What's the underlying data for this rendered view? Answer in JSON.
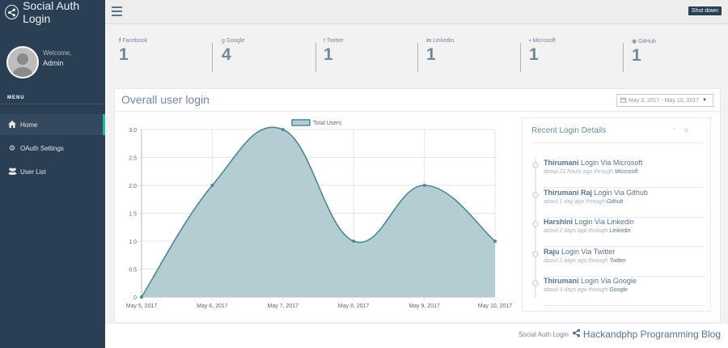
{
  "app": {
    "title": "Social Auth Login"
  },
  "profile": {
    "welcome": "Welcome,",
    "name": "Admin"
  },
  "menu": {
    "title": "MENU",
    "items": [
      {
        "label": "Home",
        "icon": "home-icon",
        "active": true
      },
      {
        "label": "OAuth Settings",
        "icon": "gear-icon",
        "active": false
      },
      {
        "label": "User List",
        "icon": "users-icon",
        "active": false
      }
    ]
  },
  "topbar": {
    "shutdown_label": "Shut down"
  },
  "stats": [
    {
      "label": "Facebook",
      "icon": "facebook-icon",
      "glyph": "f",
      "value": "1"
    },
    {
      "label": "Google",
      "icon": "google-icon",
      "glyph": "g",
      "value": "4"
    },
    {
      "label": "Twitter",
      "icon": "twitter-icon",
      "glyph": "t",
      "value": "1"
    },
    {
      "label": "Linkedin",
      "icon": "linkedin-icon",
      "glyph": "in",
      "value": "1"
    },
    {
      "label": "Microsoft",
      "icon": "windows-icon",
      "glyph": "▪",
      "value": "1"
    },
    {
      "label": "GitHub",
      "icon": "github-icon",
      "glyph": "◉",
      "value": "1"
    }
  ],
  "panel": {
    "title": "Overall user login",
    "date_range": "May 3, 2017 - May 10, 2017"
  },
  "chart_data": {
    "type": "area",
    "categories": [
      "May 5, 2017",
      "May 6, 2017",
      "May 7, 2017",
      "May 8, 2017",
      "May 9, 2017",
      "May 10, 2017"
    ],
    "series": [
      {
        "name": "Total Users",
        "values": [
          0,
          2,
          3,
          1,
          2,
          1
        ]
      }
    ],
    "yticks": [
      "0",
      "0.5",
      "1.0",
      "1.5",
      "2.0",
      "2.5",
      "3.0"
    ],
    "ylim": [
      0,
      3
    ],
    "legend": "top-center",
    "grid": true,
    "line_color": "#4d8796",
    "fill_color": "#b4cdd3"
  },
  "recent": {
    "title": "Recent Login Details",
    "items": [
      {
        "name": "Thirumani",
        "action": "Login Via Microsoft",
        "time": "about 21 hours ago through",
        "source": "Microsoft"
      },
      {
        "name": "Thirumani Raj",
        "action": "Login Via Github",
        "time": "about 1 day ago through",
        "source": "Github"
      },
      {
        "name": "Harshini",
        "action": "Login Via Linkedin",
        "time": "about 2 days ago through",
        "source": "Linkedin"
      },
      {
        "name": "Raju",
        "action": "Login Via Twitter",
        "time": "about 2 days ago through",
        "source": "Twitter"
      },
      {
        "name": "Thirumani",
        "action": "Login Via Google",
        "time": "about 4 days ago through",
        "source": "Google"
      }
    ]
  },
  "footer": {
    "small": "Social Auth Login",
    "big": "Hackandphp Programming Blog"
  }
}
